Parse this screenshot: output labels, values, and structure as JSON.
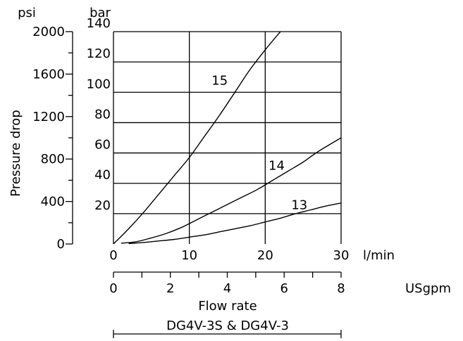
{
  "chart_data": {
    "type": "line",
    "ylabel": "Pressure drop",
    "xlabel": "Flow rate",
    "footer": "DG4V-3S & DG4V-3",
    "x_unit_primary": "l/min",
    "x_unit_secondary": "USgpm",
    "y_unit_primary": "bar",
    "y_unit_secondary": "psi",
    "xlim": [
      0,
      30
    ],
    "ylim": [
      0,
      140
    ],
    "grid": true,
    "x_ticks": [
      "0",
      "10",
      "20",
      "30"
    ],
    "x_ticks_values": [
      0,
      10,
      20,
      30
    ],
    "secondary_x_ticks": [
      "0",
      "2",
      "4",
      "6",
      "8"
    ],
    "secondary_x_ticks_values": [
      0,
      2,
      4,
      6,
      8
    ],
    "secondary_xlim": [
      0,
      8
    ],
    "y_ticks": [
      "20",
      "40",
      "60",
      "80",
      "100",
      "120",
      "140"
    ],
    "y_ticks_values": [
      20,
      40,
      60,
      80,
      100,
      120,
      140
    ],
    "secondary_y_ticks": [
      "0",
      "400",
      "800",
      "1200",
      "1600",
      "2000"
    ],
    "secondary_y_ticks_values": [
      0,
      400,
      800,
      1200,
      1600,
      2000
    ],
    "secondary_ylim": [
      0,
      2000
    ],
    "series": [
      {
        "name": "15",
        "label_at": [
          14.0,
          105
        ],
        "x": [
          0,
          2,
          4,
          6,
          8,
          10,
          12,
          14,
          16,
          18,
          20,
          22
        ],
        "y": [
          0,
          10,
          21,
          33,
          45,
          57,
          71,
          85,
          100,
          115,
          128,
          140
        ]
      },
      {
        "name": "14",
        "label_at": [
          21.5,
          49
        ],
        "x": [
          1,
          3,
          5,
          7,
          9,
          11,
          13,
          15,
          17,
          19,
          21,
          23,
          25,
          27,
          30
        ],
        "y": [
          0.5,
          1.5,
          4,
          7,
          11,
          16,
          21,
          26,
          31,
          36,
          42,
          48,
          54,
          61,
          70
        ]
      },
      {
        "name": "13",
        "label_at": [
          24.5,
          23
        ],
        "x": [
          2,
          4,
          6,
          8,
          10,
          12,
          14,
          16,
          18,
          20,
          22,
          24,
          26,
          28,
          30
        ],
        "y": [
          0.3,
          1,
          2,
          3,
          4.5,
          6,
          8,
          10,
          12,
          14.5,
          17,
          20,
          22.5,
          25,
          27
        ]
      }
    ]
  }
}
